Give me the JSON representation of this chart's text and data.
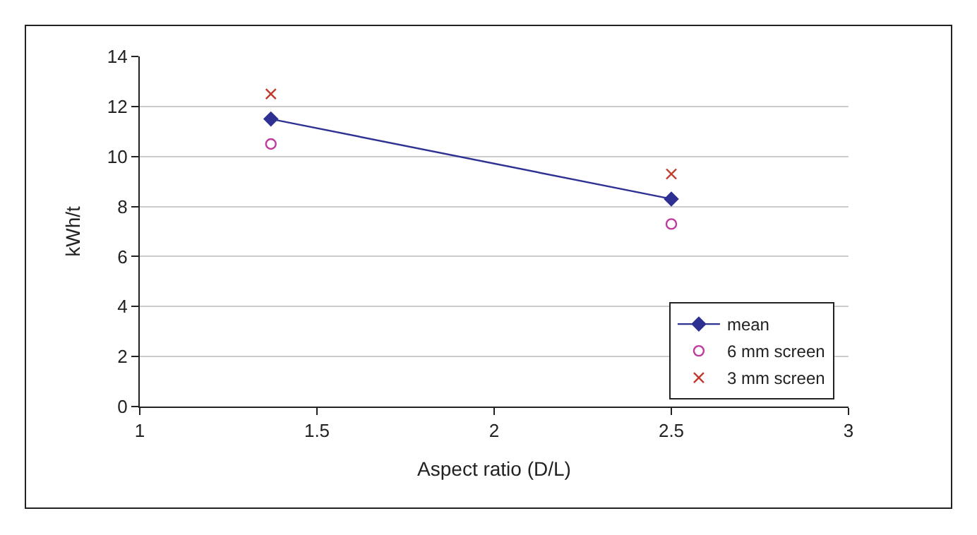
{
  "chart_data": {
    "type": "scatter",
    "xlabel": "Aspect ratio (D/L)",
    "ylabel": "kWh/t",
    "xlim": [
      1,
      3
    ],
    "xticks": [
      1,
      1.5,
      2,
      2.5,
      3
    ],
    "ylim": [
      0,
      14
    ],
    "yticks": [
      0,
      2,
      4,
      6,
      8,
      10,
      12,
      14
    ],
    "grid": "y",
    "legend": "bottom right",
    "x": [
      1.37,
      2.5
    ],
    "series": [
      {
        "name": "mean",
        "type": "line",
        "marker": "diamond",
        "color": "#2e3192",
        "values": [
          11.5,
          8.3
        ]
      },
      {
        "name": "6 mm screen",
        "marker": "circle",
        "color": "#c0399f",
        "values": [
          10.5,
          7.3
        ]
      },
      {
        "name": "3 mm screen",
        "marker": "cross",
        "color": "#c0392b",
        "values": [
          12.5,
          9.3
        ]
      }
    ]
  }
}
